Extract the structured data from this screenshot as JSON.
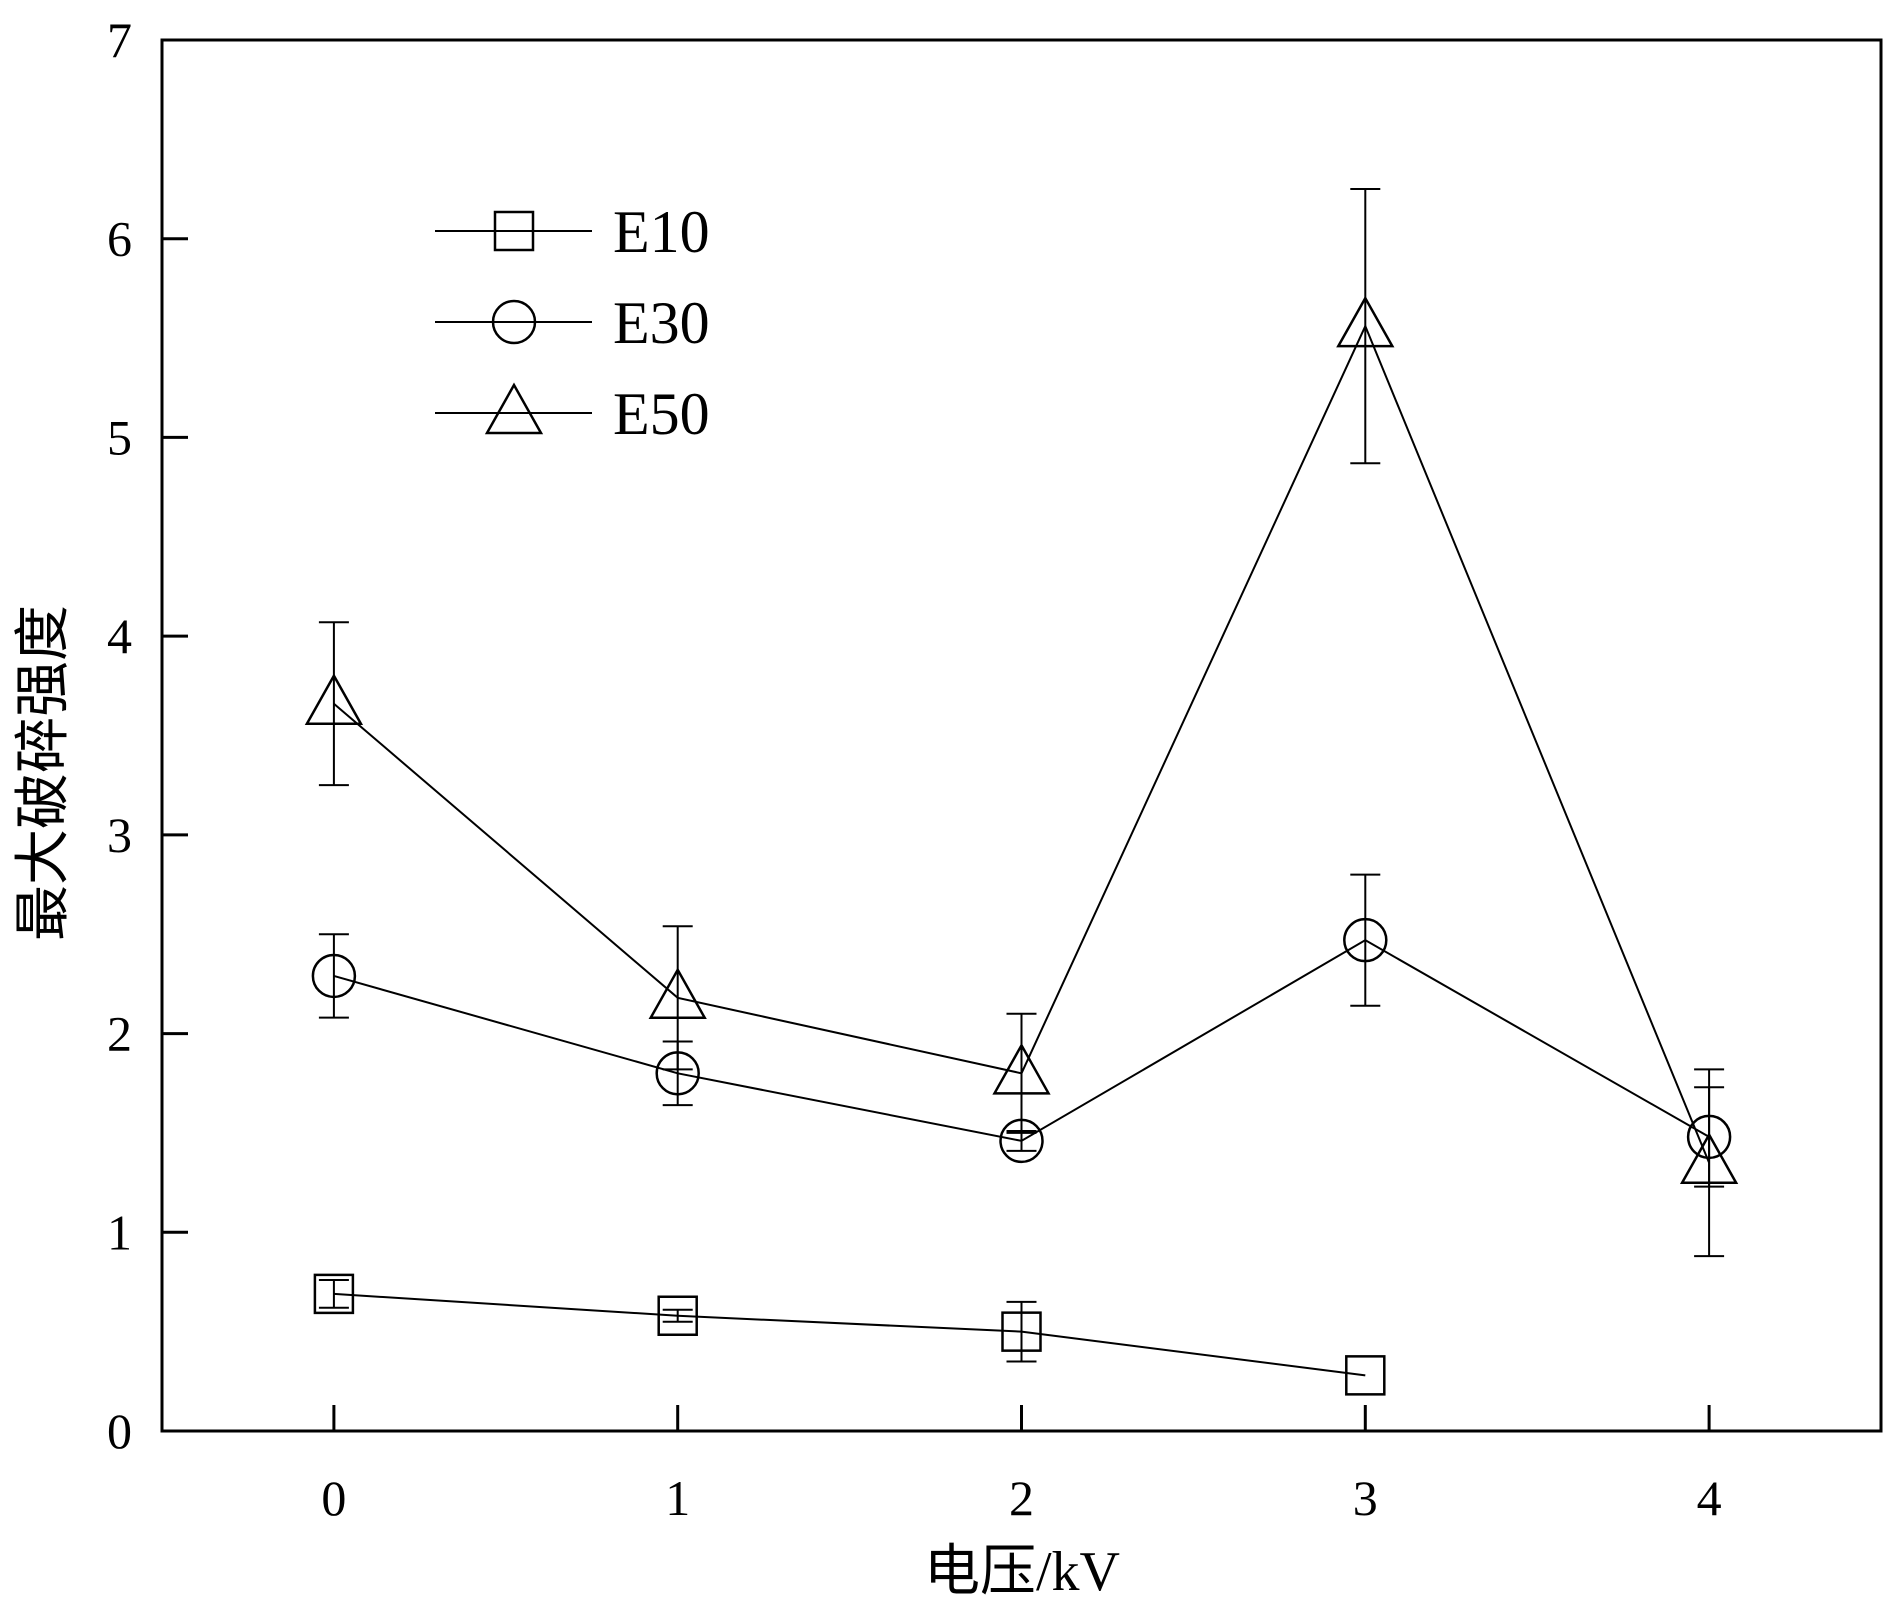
{
  "chart_data": {
    "type": "line",
    "xlabel": "电压/kV",
    "ylabel": "最大破碎强度",
    "xlim": [
      -0.5,
      4.5
    ],
    "ylim": [
      0,
      7
    ],
    "x_ticks": [
      "0",
      "1",
      "2",
      "3",
      "4"
    ],
    "y_ticks": [
      "0",
      "1",
      "2",
      "3",
      "4",
      "5",
      "6",
      "7"
    ],
    "grid": false,
    "legend_position": "top-left",
    "series": [
      {
        "name": "E10",
        "marker": "square",
        "x": [
          0,
          1,
          2,
          3
        ],
        "y": [
          0.69,
          0.58,
          0.5,
          0.28
        ],
        "error": [
          0.07,
          0.03,
          0.15,
          0
        ]
      },
      {
        "name": "E30",
        "marker": "circle",
        "x": [
          0,
          1,
          2,
          3,
          4
        ],
        "y": [
          2.29,
          1.8,
          1.46,
          2.47,
          1.48
        ],
        "error": [
          0.21,
          0.16,
          0.05,
          0.33,
          0.25
        ]
      },
      {
        "name": "E50",
        "marker": "triangle",
        "x": [
          0,
          1,
          2,
          3,
          4
        ],
        "y": [
          3.66,
          2.18,
          1.8,
          5.56,
          1.35
        ],
        "error": [
          0.41,
          0.36,
          0.3,
          0.69,
          0.47
        ]
      }
    ]
  }
}
